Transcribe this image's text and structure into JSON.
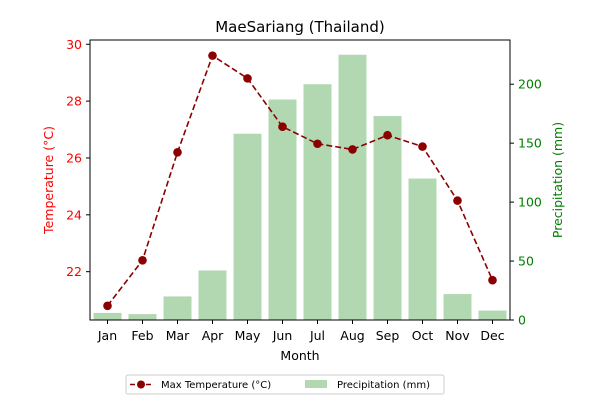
{
  "chart_data": {
    "type": "bar+line",
    "title": "MaeSariang (Thailand)",
    "xlabel": "Month",
    "ylabel_left": "Temperature (°C)",
    "ylabel_right": "Precipitation (mm)",
    "categories": [
      "Jan",
      "Feb",
      "Mar",
      "Apr",
      "May",
      "Jun",
      "Jul",
      "Aug",
      "Sep",
      "Oct",
      "Nov",
      "Dec"
    ],
    "ylim_left": [
      20.3,
      30.15
    ],
    "ylim_right": [
      0,
      237.5
    ],
    "yticks_left": [
      22,
      24,
      26,
      28,
      30
    ],
    "yticks_right": [
      0,
      50,
      100,
      150,
      200
    ],
    "legend_position": "bottom-center",
    "series": [
      {
        "name": "Max Temperature (°C)",
        "type": "line",
        "axis": "left",
        "color": "#8b0000",
        "style": "dashed-with-markers",
        "values": [
          20.8,
          22.4,
          26.2,
          29.6,
          28.8,
          27.1,
          26.5,
          26.3,
          26.8,
          26.4,
          24.5,
          21.7
        ]
      },
      {
        "name": "Precipitation (mm)",
        "type": "bar",
        "axis": "right",
        "color": "#b2d8b2",
        "values": [
          6,
          5,
          20,
          42,
          158,
          187,
          200,
          225,
          173,
          120,
          22,
          8
        ]
      }
    ],
    "colors": {
      "left_axis": "#ff0000",
      "right_axis": "#008000"
    }
  }
}
